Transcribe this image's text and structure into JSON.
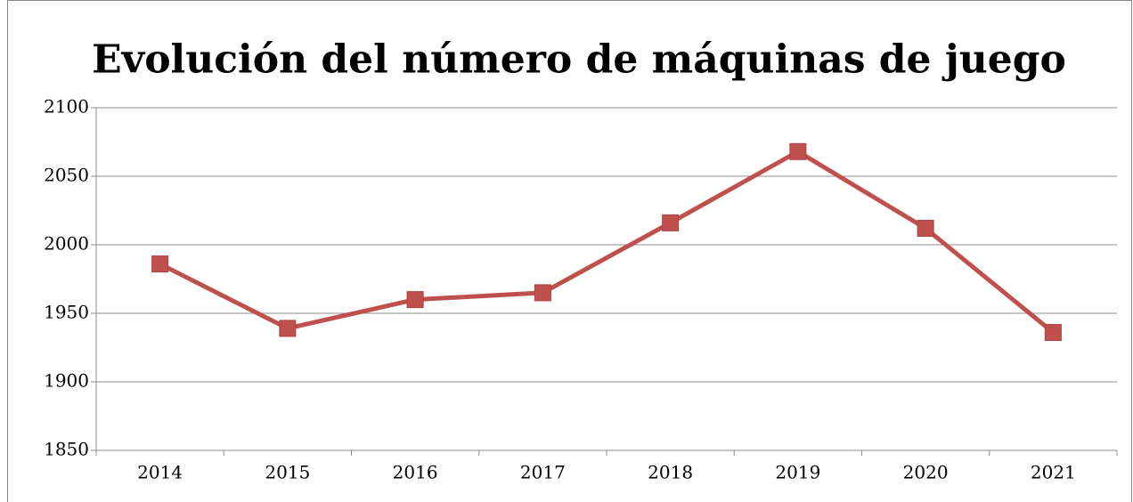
{
  "chart_data": {
    "type": "line",
    "title": "Evolución del número de máquinas de juego",
    "categories": [
      "2014",
      "2015",
      "2016",
      "2017",
      "2018",
      "2019",
      "2020",
      "2021"
    ],
    "series": [
      {
        "color": "#c0504d",
        "values": [
          1986,
          1939,
          1960,
          1965,
          2016,
          2068,
          2012,
          1936
        ]
      }
    ],
    "ylim": [
      1850,
      2100
    ],
    "yticks": [
      1850,
      1900,
      1950,
      2000,
      2050,
      2100
    ],
    "grid": true
  }
}
